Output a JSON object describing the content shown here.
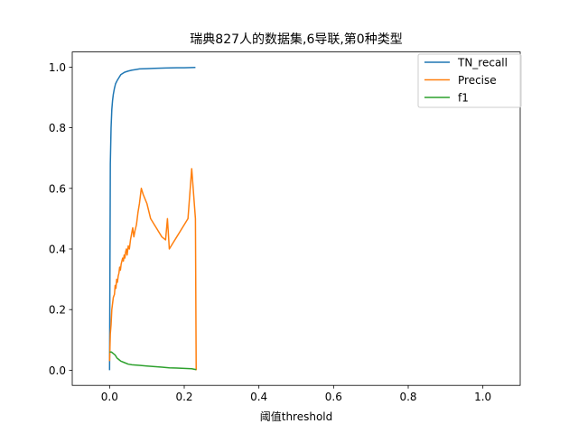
{
  "chart_data": {
    "type": "line",
    "title": "瑞典827人的数据集,6导联,第0种类型",
    "xlabel": "阈值threshold",
    "ylabel": "",
    "xlim": [
      -0.1,
      1.1
    ],
    "ylim": [
      -0.05,
      1.05
    ],
    "xticks": [
      0.0,
      0.2,
      0.4,
      0.6,
      0.8,
      1.0
    ],
    "xtick_labels": [
      "0.0",
      "0.2",
      "0.4",
      "0.6",
      "0.8",
      "1.0"
    ],
    "yticks": [
      0.0,
      0.2,
      0.4,
      0.6,
      0.8,
      1.0
    ],
    "ytick_labels": [
      "0.0",
      "0.2",
      "0.4",
      "0.6",
      "0.8",
      "1.0"
    ],
    "grid": false,
    "legend": "top-right",
    "series": [
      {
        "name": "TN_recall",
        "color": "#1f77b4",
        "x": [
          0.0,
          0.002,
          0.004,
          0.006,
          0.008,
          0.01,
          0.013,
          0.016,
          0.02,
          0.025,
          0.03,
          0.04,
          0.05,
          0.06,
          0.07,
          0.08,
          0.1,
          0.12,
          0.15,
          0.18,
          0.2,
          0.23
        ],
        "y": [
          0.0,
          0.68,
          0.8,
          0.86,
          0.89,
          0.91,
          0.93,
          0.945,
          0.955,
          0.965,
          0.975,
          0.983,
          0.987,
          0.99,
          0.992,
          0.994,
          0.995,
          0.996,
          0.997,
          0.998,
          0.998,
          0.999
        ]
      },
      {
        "name": "Precise",
        "color": "#ff7f0e",
        "x": [
          0.0,
          0.002,
          0.004,
          0.006,
          0.008,
          0.01,
          0.013,
          0.015,
          0.017,
          0.019,
          0.021,
          0.023,
          0.025,
          0.027,
          0.029,
          0.031,
          0.033,
          0.035,
          0.037,
          0.039,
          0.041,
          0.043,
          0.045,
          0.047,
          0.05,
          0.053,
          0.056,
          0.059,
          0.062,
          0.065,
          0.068,
          0.072,
          0.076,
          0.08,
          0.085,
          0.09,
          0.1,
          0.11,
          0.115,
          0.12,
          0.13,
          0.14,
          0.15,
          0.155,
          0.16,
          0.17,
          0.18,
          0.19,
          0.2,
          0.21,
          0.22,
          0.23,
          0.232
        ],
        "y": [
          0.03,
          0.12,
          0.15,
          0.2,
          0.22,
          0.24,
          0.25,
          0.28,
          0.27,
          0.3,
          0.29,
          0.31,
          0.32,
          0.34,
          0.33,
          0.35,
          0.36,
          0.37,
          0.36,
          0.38,
          0.37,
          0.39,
          0.4,
          0.38,
          0.41,
          0.4,
          0.43,
          0.45,
          0.47,
          0.44,
          0.46,
          0.48,
          0.52,
          0.55,
          0.6,
          0.58,
          0.55,
          0.5,
          0.49,
          0.48,
          0.46,
          0.44,
          0.43,
          0.5,
          0.4,
          0.42,
          0.44,
          0.46,
          0.48,
          0.5,
          0.665,
          0.5,
          0.0
        ]
      },
      {
        "name": "f1",
        "color": "#2ca02c",
        "x": [
          0.0,
          0.005,
          0.01,
          0.015,
          0.02,
          0.025,
          0.03,
          0.04,
          0.05,
          0.06,
          0.08,
          0.1,
          0.12,
          0.14,
          0.16,
          0.18,
          0.2,
          0.22,
          0.232
        ],
        "y": [
          0.06,
          0.06,
          0.055,
          0.05,
          0.04,
          0.035,
          0.03,
          0.025,
          0.02,
          0.018,
          0.016,
          0.014,
          0.012,
          0.01,
          0.008,
          0.007,
          0.006,
          0.005,
          0.002
        ]
      }
    ]
  }
}
